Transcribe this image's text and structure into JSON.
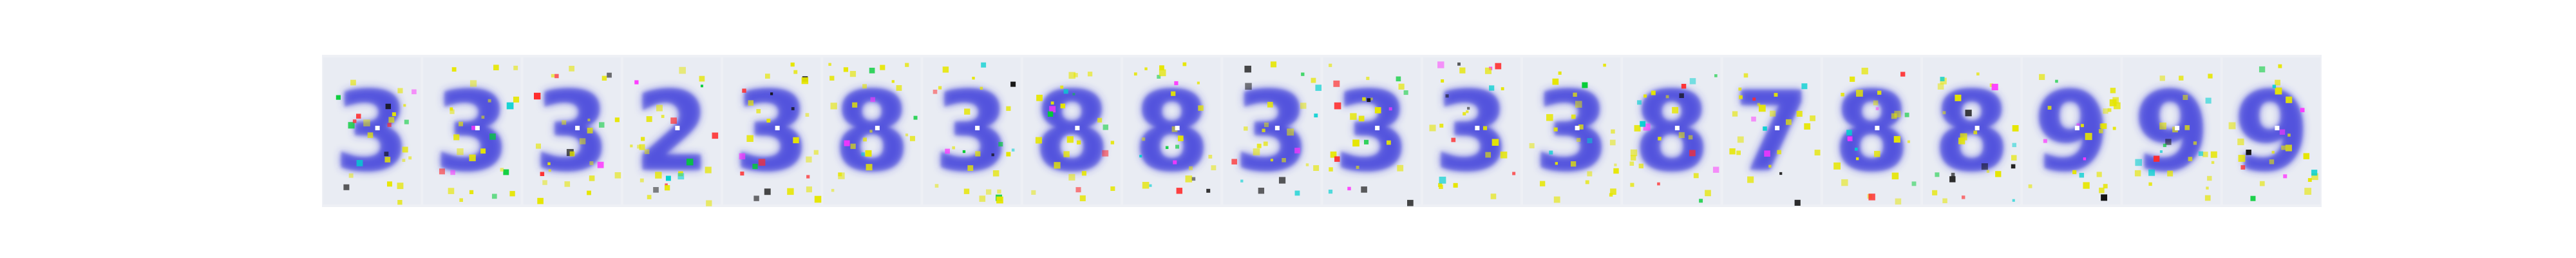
{
  "image": {
    "description_free_note": "",
    "tiles": [
      {
        "glyph": "3",
        "hue": "#3b3bd9",
        "noise": "#e6e600"
      },
      {
        "glyph": "3",
        "hue": "#3b3bd9",
        "noise": "#e6e600"
      },
      {
        "glyph": "3",
        "hue": "#3b3bd9",
        "noise": "#e6e600"
      },
      {
        "glyph": "2",
        "hue": "#3b3bd9",
        "noise": "#e6e600"
      },
      {
        "glyph": "3",
        "hue": "#3b3bd9",
        "noise": "#e6e600"
      },
      {
        "glyph": "8",
        "hue": "#3b3bd9",
        "noise": "#e6e600"
      },
      {
        "glyph": "3",
        "hue": "#3b3bd9",
        "noise": "#e6e600"
      },
      {
        "glyph": "8",
        "hue": "#3b3bd9",
        "noise": "#e6e600"
      },
      {
        "glyph": "8",
        "hue": "#3b3bd9",
        "noise": "#e6e600"
      },
      {
        "glyph": "3",
        "hue": "#3b3bd9",
        "noise": "#e6e600"
      },
      {
        "glyph": "3",
        "hue": "#3b3bd9",
        "noise": "#e6e600"
      },
      {
        "glyph": "3",
        "hue": "#3b3bd9",
        "noise": "#e6e600"
      },
      {
        "glyph": "3",
        "hue": "#3b3bd9",
        "noise": "#e6e600"
      },
      {
        "glyph": "8",
        "hue": "#3b3bd9",
        "noise": "#e6e600"
      },
      {
        "glyph": "7",
        "hue": "#3b3bd9",
        "noise": "#e6e600"
      },
      {
        "glyph": "8",
        "hue": "#3b3bd9",
        "noise": "#e6e600"
      },
      {
        "glyph": "8",
        "hue": "#3b3bd9",
        "noise": "#e6e600"
      },
      {
        "glyph": "9",
        "hue": "#3b3bd9",
        "noise": "#e6e600"
      },
      {
        "glyph": "9",
        "hue": "#3b3bd9",
        "noise": "#e6e600"
      },
      {
        "glyph": "9",
        "hue": "#3b3bd9",
        "noise": "#e6e600"
      }
    ]
  }
}
